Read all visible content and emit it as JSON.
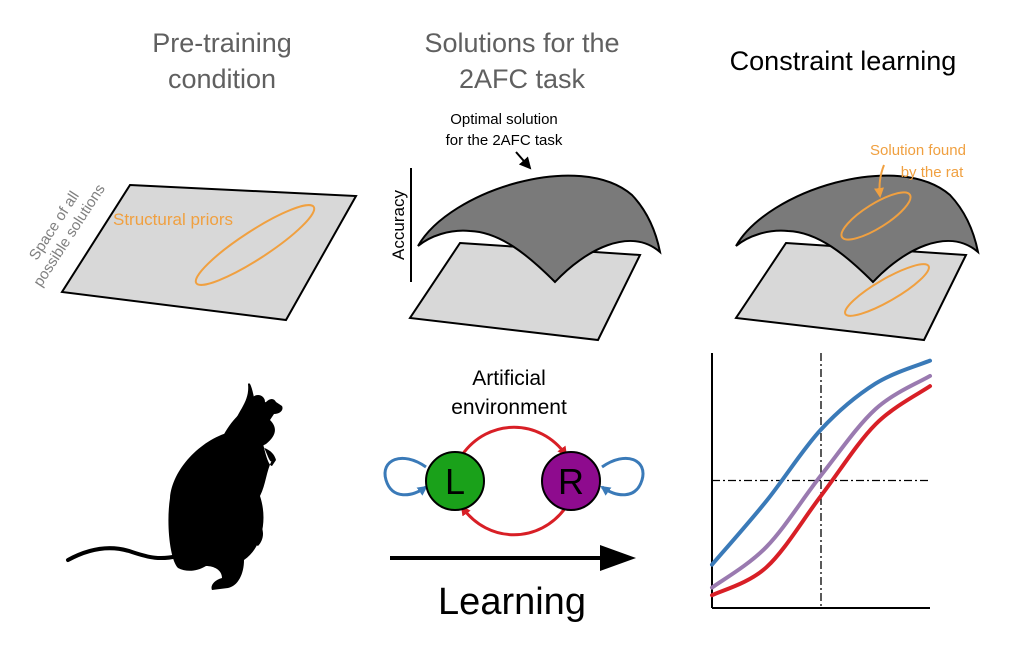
{
  "panels": {
    "pretraining": {
      "title_line1": "Pre-training",
      "title_line2": "condition",
      "space_label_line1": "Space of all",
      "space_label_line2": "possible solutions",
      "priors_label": "Structural priors"
    },
    "solutions": {
      "title_line1": "Solutions for the",
      "title_line2": "2AFC task",
      "optimal_line1": "Optimal solution",
      "optimal_line2": "for the 2AFC task",
      "accuracy_label": "Accuracy"
    },
    "constraint": {
      "title": "Constraint learning",
      "found_line1": "Solution found",
      "found_line2": "by the rat"
    }
  },
  "environment": {
    "title_line1": "Artificial",
    "title_line2": "environment",
    "left_state": "L",
    "right_state": "R",
    "left_color": "#1aa11a",
    "right_color": "#8e0b8e"
  },
  "learning_label": "Learning",
  "colors": {
    "title_gray": "#606060",
    "orange": "#f0a040",
    "plane_fill": "#d8d8d8",
    "surface_fill": "#7a7a7a",
    "curve_blue": "#3a7ab8",
    "curve_red": "#d81f26",
    "curve_purple": "#9a7ab0"
  },
  "chart_data": {
    "type": "line",
    "title": "",
    "xlabel": "",
    "ylabel": "",
    "ylim": [
      0,
      1
    ],
    "xlim": [
      -1,
      1
    ],
    "reference_lines": {
      "x": 0,
      "y": 0.5
    },
    "series": [
      {
        "color": "#3a7ab8",
        "x": [
          -1,
          -0.5,
          0,
          0.5,
          1
        ],
        "values": [
          0.17,
          0.42,
          0.7,
          0.88,
          0.97
        ]
      },
      {
        "color": "#9a7ab0",
        "x": [
          -1,
          -0.5,
          0,
          0.5,
          1
        ],
        "values": [
          0.08,
          0.24,
          0.52,
          0.78,
          0.91
        ]
      },
      {
        "color": "#d81f26",
        "x": [
          -1,
          -0.5,
          0,
          0.5,
          1
        ],
        "values": [
          0.05,
          0.16,
          0.44,
          0.72,
          0.87
        ]
      }
    ]
  }
}
